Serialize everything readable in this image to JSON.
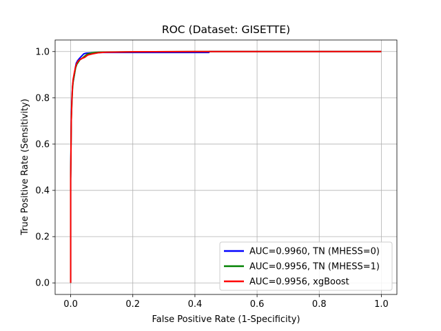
{
  "chart_data": {
    "type": "line",
    "title": "ROC (Dataset: GISETTE)",
    "xlabel": "False Positive Rate (1-Specificity)",
    "ylabel": "True Positive Rate (Sensitivity)",
    "xlim": [
      -0.05,
      1.05
    ],
    "ylim": [
      -0.05,
      1.05
    ],
    "xticks": [
      0.0,
      0.2,
      0.4,
      0.6,
      0.8,
      1.0
    ],
    "yticks": [
      0.0,
      0.2,
      0.4,
      0.6,
      0.8,
      1.0
    ],
    "xtick_labels": [
      "0.0",
      "0.2",
      "0.4",
      "0.6",
      "0.8",
      "1.0"
    ],
    "ytick_labels": [
      "0.0",
      "0.2",
      "0.4",
      "0.6",
      "0.8",
      "1.0"
    ],
    "grid": true,
    "legend_position": "bottom-right",
    "series": [
      {
        "name": "AUC=0.9960, TN (MHESS=0)",
        "color": "#0000ff",
        "x": [
          0.0,
          0.0,
          0.002,
          0.004,
          0.006,
          0.008,
          0.012,
          0.015,
          0.018,
          0.022,
          0.028,
          0.035,
          0.042,
          0.05,
          0.07,
          0.1,
          0.2,
          0.3,
          0.445,
          0.445,
          0.6,
          0.8,
          1.0
        ],
        "y": [
          0.0,
          0.45,
          0.72,
          0.8,
          0.85,
          0.87,
          0.9,
          0.93,
          0.95,
          0.96,
          0.97,
          0.98,
          0.99,
          0.993,
          0.995,
          0.996,
          0.996,
          0.996,
          0.996,
          1.0,
          1.0,
          1.0,
          1.0
        ]
      },
      {
        "name": "AUC=0.9956, TN (MHESS=1)",
        "color": "#008000",
        "x": [
          0.0,
          0.0,
          0.002,
          0.004,
          0.006,
          0.008,
          0.012,
          0.016,
          0.02,
          0.025,
          0.03,
          0.036,
          0.045,
          0.055,
          0.07,
          0.09,
          0.11,
          0.2,
          0.4,
          0.6,
          0.8,
          1.0
        ],
        "y": [
          0.0,
          0.45,
          0.7,
          0.78,
          0.84,
          0.87,
          0.9,
          0.93,
          0.945,
          0.955,
          0.965,
          0.97,
          0.98,
          0.99,
          0.995,
          0.997,
          0.998,
          0.999,
          1.0,
          1.0,
          1.0,
          1.0
        ]
      },
      {
        "name": "AUC=0.9956, xgBoost",
        "color": "#ff0000",
        "x": [
          0.0,
          0.0,
          0.002,
          0.004,
          0.006,
          0.008,
          0.012,
          0.016,
          0.02,
          0.025,
          0.03,
          0.036,
          0.045,
          0.055,
          0.07,
          0.09,
          0.11,
          0.2,
          0.4,
          0.6,
          0.8,
          1.0
        ],
        "y": [
          0.0,
          0.44,
          0.7,
          0.79,
          0.85,
          0.88,
          0.91,
          0.935,
          0.95,
          0.96,
          0.965,
          0.97,
          0.975,
          0.985,
          0.99,
          0.995,
          0.997,
          0.999,
          1.0,
          1.0,
          1.0,
          1.0
        ]
      }
    ]
  }
}
